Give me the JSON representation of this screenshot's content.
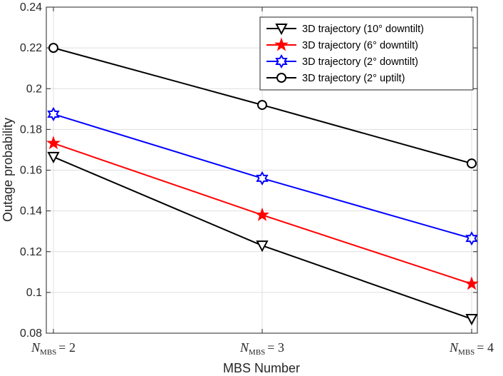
{
  "chart_data": {
    "type": "line",
    "title": "",
    "xlabel": "MBS Number",
    "ylabel": "Outage probability",
    "categories": [
      {
        "sym": "N",
        "sub": "MBS",
        "eq": "= 2"
      },
      {
        "sym": "N",
        "sub": "MBS",
        "eq": "= 3"
      },
      {
        "sym": "N",
        "sub": "MBS",
        "eq": "= 4"
      }
    ],
    "ylim": [
      0.08,
      0.24
    ],
    "yticks": [
      "0.08",
      "0.1",
      "0.12",
      "0.14",
      "0.16",
      "0.18",
      "0.2",
      "0.22",
      "0.24"
    ],
    "grid": true,
    "legend_position": "top-right",
    "series": [
      {
        "name": "3D trajectory (10° downtilt)",
        "color": "#000000",
        "marker": "triangle-down",
        "values": [
          0.1665,
          0.123,
          0.087
        ]
      },
      {
        "name": "3D trajectory (6° downtilt)",
        "color": "#ff0000",
        "marker": "pentagram",
        "values": [
          0.1732,
          0.138,
          0.1042
        ]
      },
      {
        "name": "3D trajectory (2° downtilt)",
        "color": "#0000ff",
        "marker": "hexagram",
        "values": [
          0.1875,
          0.156,
          0.1265
        ]
      },
      {
        "name": "3D trajectory (2° uptilt)",
        "color": "#000000",
        "marker": "circle",
        "values": [
          0.22,
          0.192,
          0.1633
        ]
      }
    ]
  }
}
